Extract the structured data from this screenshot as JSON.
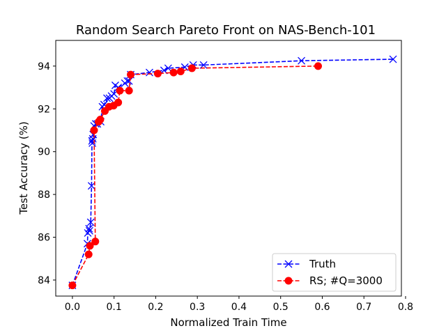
{
  "chart_data": {
    "type": "line",
    "title": "Random Search Pareto Front on NAS-Bench-101",
    "xlabel": "Normalized Train Time",
    "ylabel": "Test Accuracy (%)",
    "xlim": [
      -0.04,
      0.79
    ],
    "ylim": [
      83.25,
      95.2
    ],
    "xticks": [
      0.0,
      0.1,
      0.2,
      0.3,
      0.4,
      0.5,
      0.6,
      0.7,
      0.8
    ],
    "xtick_labels": [
      "0.0",
      "0.1",
      "0.2",
      "0.3",
      "0.4",
      "0.5",
      "0.6",
      "0.7",
      "0.8"
    ],
    "yticks": [
      84,
      86,
      88,
      90,
      92,
      94
    ],
    "ytick_labels": [
      "84",
      "86",
      "88",
      "90",
      "92",
      "94"
    ],
    "grid": false,
    "legend_position": "lower-right",
    "series": [
      {
        "name": "Truth",
        "color": "#0000ff",
        "marker": "x",
        "linestyle": "dashed",
        "x": [
          0.0,
          0.036,
          0.037,
          0.04,
          0.041,
          0.044,
          0.046,
          0.047,
          0.048,
          0.049,
          0.05,
          0.052,
          0.056,
          0.06,
          0.068,
          0.072,
          0.076,
          0.083,
          0.089,
          0.094,
          0.1,
          0.103,
          0.11,
          0.126,
          0.132,
          0.136,
          0.14,
          0.185,
          0.22,
          0.23,
          0.27,
          0.29,
          0.315,
          0.55,
          0.77
        ],
        "y": [
          83.75,
          85.7,
          86.2,
          86.4,
          86.3,
          86.7,
          88.4,
          90.5,
          90.4,
          90.6,
          90.8,
          91.2,
          91.3,
          91.3,
          91.4,
          92.1,
          92.2,
          92.5,
          92.5,
          92.6,
          92.7,
          93.1,
          93.0,
          93.2,
          93.3,
          93.3,
          93.6,
          93.7,
          93.8,
          93.9,
          93.95,
          94.05,
          94.05,
          94.25,
          94.32
        ]
      },
      {
        "name": "RS; #Q=3000",
        "color": "#ff0000",
        "marker": "o",
        "linestyle": "dashed",
        "x": [
          0.0,
          0.039,
          0.042,
          0.055,
          0.052,
          0.063,
          0.067,
          0.078,
          0.088,
          0.099,
          0.11,
          0.114,
          0.136,
          0.14,
          0.205,
          0.243,
          0.26,
          0.287,
          0.59
        ],
        "y": [
          83.75,
          85.2,
          85.6,
          85.8,
          91.0,
          91.4,
          91.5,
          91.9,
          92.1,
          92.15,
          92.3,
          92.85,
          92.85,
          93.6,
          93.65,
          93.7,
          93.75,
          93.9,
          94.0
        ]
      }
    ]
  }
}
